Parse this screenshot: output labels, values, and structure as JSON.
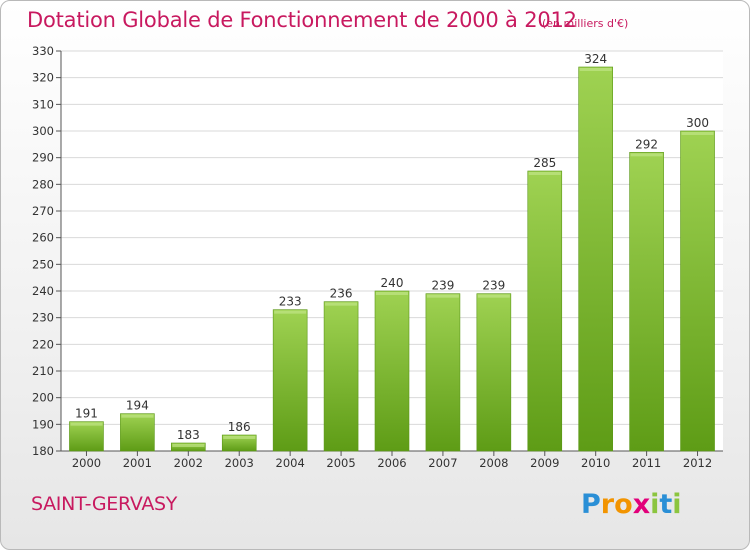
{
  "header": {
    "title": "Dotation Globale de Fonctionnement de 2000 à 2012",
    "unit": "(en milliers d'€)"
  },
  "footer": {
    "commune": "SAINT-GERVASY",
    "logo": "Proxiti"
  },
  "colors": {
    "accent": "#c8195f",
    "bar_top": "#9fd252",
    "bar_bottom": "#5e9c16",
    "grid": "#d9d9d9"
  },
  "chart_data": {
    "type": "bar",
    "categories": [
      "2000",
      "2001",
      "2002",
      "2003",
      "2004",
      "2005",
      "2006",
      "2007",
      "2008",
      "2009",
      "2010",
      "2011",
      "2012"
    ],
    "values": [
      191,
      194,
      183,
      186,
      233,
      236,
      240,
      239,
      239,
      285,
      324,
      292,
      300
    ],
    "data_labels": [
      "191",
      "194",
      "183",
      "186",
      "233",
      "236",
      "240",
      "239",
      "239",
      "285",
      "324",
      "292",
      "300"
    ],
    "ylim": [
      180,
      330
    ],
    "yticks": [
      180,
      190,
      200,
      210,
      220,
      230,
      240,
      250,
      260,
      270,
      280,
      290,
      300,
      310,
      320,
      330
    ],
    "title": "Dotation Globale de Fonctionnement de 2000 à 2012",
    "xlabel": "",
    "ylabel": "",
    "grid": true
  }
}
